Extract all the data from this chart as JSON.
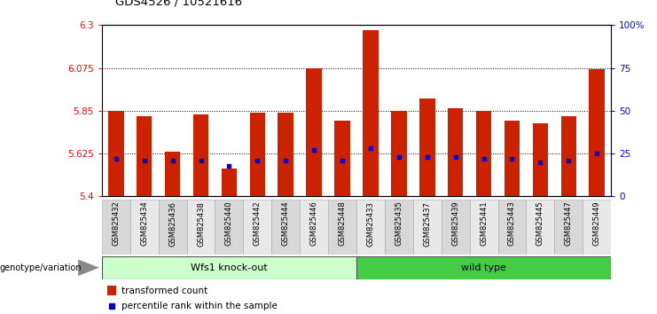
{
  "title": "GDS4526 / 10521616",
  "categories": [
    "GSM825432",
    "GSM825434",
    "GSM825436",
    "GSM825438",
    "GSM825440",
    "GSM825442",
    "GSM825444",
    "GSM825446",
    "GSM825448",
    "GSM825433",
    "GSM825435",
    "GSM825437",
    "GSM825439",
    "GSM825441",
    "GSM825443",
    "GSM825445",
    "GSM825447",
    "GSM825449"
  ],
  "bar_values": [
    5.848,
    5.82,
    5.635,
    5.832,
    5.545,
    5.84,
    5.84,
    6.073,
    5.797,
    6.275,
    5.848,
    5.915,
    5.864,
    5.85,
    5.797,
    5.782,
    5.82,
    6.068
  ],
  "percentile_values": [
    22,
    21,
    21,
    21,
    18,
    21,
    21,
    27,
    21,
    28,
    23,
    23,
    23,
    22,
    22,
    20,
    21,
    25
  ],
  "group1_label": "Wfs1 knock-out",
  "group2_label": "wild type",
  "group1_count": 9,
  "group2_count": 9,
  "ymin": 5.4,
  "ymax": 6.3,
  "yticks": [
    5.4,
    5.625,
    5.85,
    6.075,
    6.3
  ],
  "ytick_labels": [
    "5.4",
    "5.625",
    "5.85",
    "6.075",
    "6.3"
  ],
  "y2ticks": [
    0,
    25,
    50,
    75,
    100
  ],
  "y2tick_labels": [
    "0",
    "25",
    "50",
    "75",
    "100%"
  ],
  "bar_color": "#cc2200",
  "percentile_color": "#0000cc",
  "group1_bg": "#ccffcc",
  "group2_bg": "#44cc44",
  "genotype_label": "genotype/variation",
  "legend_bar_label": "transformed count",
  "legend_pct_label": "percentile rank within the sample",
  "bar_width": 0.55,
  "tick_bg": "#d8d8d8"
}
